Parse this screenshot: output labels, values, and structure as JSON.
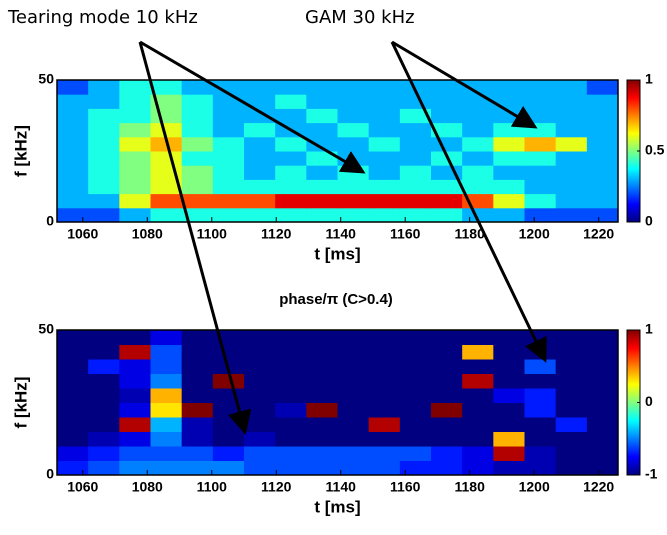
{
  "chart_data": [
    {
      "type": "heatmap",
      "annotations": [
        "Tearing mode 10 kHz",
        "GAM 30 kHz"
      ],
      "xlabel": "t [ms]",
      "ylabel": "f [kHz]",
      "xlim": [
        1052,
        1226
      ],
      "xticks": [
        1060,
        1080,
        1100,
        1120,
        1140,
        1160,
        1180,
        1200,
        1220
      ],
      "ylim": [
        0,
        50
      ],
      "yticks": [
        0,
        50
      ],
      "clim": [
        0,
        1
      ],
      "cticks": [
        0,
        0.5,
        1
      ],
      "colormap": "jet",
      "z": [
        [
          0.2,
          0.2,
          0.3,
          0.4,
          0.4,
          0.4,
          0.4,
          0.4,
          0.4,
          0.4,
          0.4,
          0.4,
          0.4,
          0.3,
          0.3,
          0.2,
          0.2,
          0.2
        ],
        [
          0.3,
          0.3,
          0.6,
          0.8,
          0.8,
          0.8,
          0.8,
          0.9,
          0.9,
          0.9,
          0.9,
          0.9,
          0.9,
          0.8,
          0.6,
          0.4,
          0.3,
          0.3
        ],
        [
          0.3,
          0.4,
          0.5,
          0.6,
          0.5,
          0.4,
          0.4,
          0.4,
          0.4,
          0.4,
          0.4,
          0.4,
          0.4,
          0.4,
          0.4,
          0.3,
          0.3,
          0.3
        ],
        [
          0.3,
          0.4,
          0.5,
          0.6,
          0.5,
          0.4,
          0.3,
          0.4,
          0.3,
          0.4,
          0.3,
          0.4,
          0.3,
          0.4,
          0.3,
          0.3,
          0.3,
          0.3
        ],
        [
          0.3,
          0.4,
          0.5,
          0.6,
          0.4,
          0.4,
          0.3,
          0.3,
          0.4,
          0.3,
          0.3,
          0.3,
          0.4,
          0.3,
          0.4,
          0.4,
          0.3,
          0.3
        ],
        [
          0.3,
          0.4,
          0.6,
          0.7,
          0.5,
          0.4,
          0.3,
          0.4,
          0.3,
          0.3,
          0.4,
          0.3,
          0.3,
          0.4,
          0.6,
          0.7,
          0.6,
          0.3
        ],
        [
          0.3,
          0.4,
          0.5,
          0.6,
          0.4,
          0.3,
          0.4,
          0.3,
          0.3,
          0.4,
          0.3,
          0.3,
          0.4,
          0.3,
          0.4,
          0.4,
          0.3,
          0.3
        ],
        [
          0.3,
          0.4,
          0.4,
          0.5,
          0.4,
          0.3,
          0.3,
          0.3,
          0.4,
          0.3,
          0.3,
          0.4,
          0.3,
          0.3,
          0.3,
          0.3,
          0.3,
          0.3
        ],
        [
          0.3,
          0.3,
          0.4,
          0.5,
          0.4,
          0.3,
          0.3,
          0.4,
          0.3,
          0.3,
          0.3,
          0.3,
          0.3,
          0.3,
          0.3,
          0.3,
          0.3,
          0.3
        ],
        [
          0.2,
          0.3,
          0.4,
          0.4,
          0.3,
          0.3,
          0.3,
          0.3,
          0.3,
          0.3,
          0.3,
          0.3,
          0.3,
          0.3,
          0.3,
          0.3,
          0.3,
          0.2
        ]
      ]
    },
    {
      "type": "heatmap",
      "title": "phase/π (C>0.4)",
      "xlabel": "t [ms]",
      "ylabel": "f [kHz]",
      "xlim": [
        1052,
        1226
      ],
      "xticks": [
        1060,
        1080,
        1100,
        1120,
        1140,
        1160,
        1180,
        1200,
        1220
      ],
      "ylim": [
        0,
        50
      ],
      "yticks": [
        0,
        50
      ],
      "clim": [
        -1,
        1
      ],
      "cticks": [
        -1,
        0,
        1
      ],
      "colormap": "jet",
      "z": [
        [
          -0.7,
          -0.6,
          -0.5,
          -0.5,
          -0.5,
          -0.5,
          -0.6,
          -0.6,
          -0.6,
          -0.6,
          -0.6,
          -0.7,
          -0.7,
          -0.8,
          -0.9,
          -0.9,
          -1,
          -1
        ],
        [
          -0.8,
          -0.7,
          -0.6,
          -0.6,
          -0.6,
          -0.7,
          -0.6,
          -0.6,
          -0.6,
          -0.6,
          -0.6,
          -0.6,
          -0.7,
          -0.8,
          0.9,
          -0.9,
          -1,
          -1
        ],
        [
          -1,
          -0.9,
          -0.8,
          -0.5,
          -0.9,
          -1,
          -0.9,
          -1,
          -1,
          -1,
          -1,
          -1,
          -1,
          -1,
          0.4,
          -1,
          -1,
          -1
        ],
        [
          -1,
          -1,
          0.9,
          -0.4,
          -0.9,
          -1,
          -1,
          -1,
          -1,
          -1,
          0.9,
          -1,
          -1,
          -1,
          -1,
          -1,
          -0.7,
          -1
        ],
        [
          -1,
          -1,
          -0.8,
          0.3,
          1,
          -1,
          -1,
          -0.9,
          1,
          -1,
          -1,
          -1,
          1,
          -1,
          -1,
          -0.7,
          -1,
          -1
        ],
        [
          -1,
          -1,
          -0.9,
          0.4,
          -1,
          -1,
          -1,
          -1,
          -1,
          -1,
          -1,
          -1,
          -1,
          -1,
          -0.8,
          -0.7,
          -1,
          -1
        ],
        [
          -1,
          -1,
          -0.8,
          -0.5,
          -1,
          1,
          -1,
          -1,
          -1,
          -1,
          -1,
          -1,
          -1,
          0.9,
          -1,
          -1,
          -1,
          -1
        ],
        [
          -1,
          -0.7,
          -0.8,
          -0.6,
          -1,
          -1,
          -1,
          -1,
          -1,
          -1,
          -1,
          -1,
          -1,
          -1,
          -1,
          -0.6,
          -1,
          -1
        ],
        [
          -1,
          -1,
          0.9,
          -0.6,
          -1,
          -1,
          -1,
          -1,
          -1,
          -1,
          -1,
          -1,
          -1,
          0.4,
          -1,
          -1,
          -1,
          -1
        ],
        [
          -1,
          -1,
          -1,
          -0.8,
          -1,
          -1,
          -1,
          -1,
          -1,
          -1,
          -1,
          -1,
          -1,
          -1,
          -1,
          -1,
          -1,
          -1
        ]
      ]
    }
  ]
}
